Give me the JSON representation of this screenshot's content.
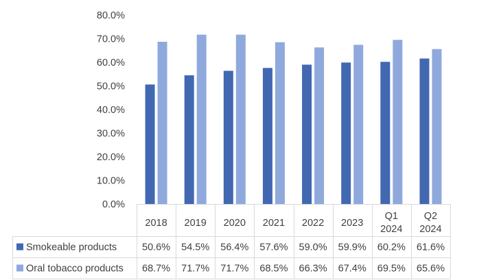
{
  "chart_data": {
    "type": "bar",
    "categories": [
      [
        "2018"
      ],
      [
        "2019"
      ],
      [
        "2020"
      ],
      [
        "2021"
      ],
      [
        "2022"
      ],
      [
        "2023"
      ],
      [
        "Q1",
        "2024"
      ],
      [
        "Q2",
        "2024"
      ]
    ],
    "series": [
      {
        "name": "Smokeable products",
        "color": "#4268B1",
        "values": [
          50.6,
          54.5,
          56.4,
          57.6,
          59.0,
          59.9,
          60.2,
          61.6
        ],
        "labels": [
          "50.6%",
          "54.5%",
          "56.4%",
          "57.6%",
          "59.0%",
          "59.9%",
          "60.2%",
          "61.6%"
        ]
      },
      {
        "name": "Oral tobacco products",
        "color": "#8FA9DC",
        "values": [
          68.7,
          71.7,
          71.7,
          68.5,
          66.3,
          67.4,
          69.5,
          65.6
        ],
        "labels": [
          "68.7%",
          "71.7%",
          "71.7%",
          "68.5%",
          "66.3%",
          "67.4%",
          "69.5%",
          "65.6%"
        ]
      }
    ],
    "yticks": [
      "0.0%",
      "10.0%",
      "20.0%",
      "30.0%",
      "40.0%",
      "50.0%",
      "60.0%",
      "70.0%",
      "80.0%"
    ],
    "ylim": [
      0,
      80
    ],
    "grid": false,
    "legend": "data-table-left",
    "title": "",
    "xlabel": "",
    "ylabel": ""
  }
}
